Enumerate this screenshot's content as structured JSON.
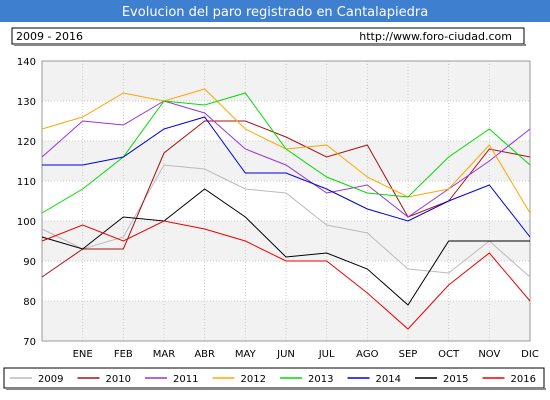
{
  "header": {
    "title": "Evolucion del paro registrado en Cantalapiedra",
    "period": "2009 - 2016",
    "url": "http://www.foro-ciudad.com"
  },
  "colors": {
    "title_bar": "#3f7fcf",
    "plot_band": "#f2f2f2",
    "grid": "#cccccc"
  },
  "chart_data": {
    "type": "line",
    "title": "Evolucion del paro registrado en Cantalapiedra",
    "categories": [
      "",
      "ENE",
      "FEB",
      "MAR",
      "ABR",
      "MAY",
      "JUN",
      "JUL",
      "AGO",
      "SEP",
      "OCT",
      "NOV",
      "DIC"
    ],
    "y_ticks": [
      70,
      80,
      90,
      100,
      110,
      120,
      130,
      140
    ],
    "ylim": [
      70,
      140
    ],
    "grid": true,
    "legend_position": "bottom",
    "series": [
      {
        "name": "2009",
        "color": "#bbbbbb",
        "values": [
          98,
          93,
          96,
          114,
          113,
          108,
          107,
          99,
          97,
          88,
          87,
          95,
          86
        ]
      },
      {
        "name": "2010",
        "color": "#aa1111",
        "values": [
          86,
          93,
          93,
          117,
          125,
          125,
          121,
          116,
          119,
          101,
          105,
          118,
          116
        ]
      },
      {
        "name": "2011",
        "color": "#9933dd",
        "values": [
          116,
          125,
          124,
          130,
          127,
          118,
          114,
          107,
          109,
          101,
          108,
          115,
          123
        ]
      },
      {
        "name": "2012",
        "color": "#ffa500",
        "values": [
          123,
          126,
          132,
          130,
          133,
          123,
          118,
          119,
          111,
          106,
          108,
          119,
          102
        ]
      },
      {
        "name": "2013",
        "color": "#00dd00",
        "values": [
          102,
          108,
          116,
          130,
          129,
          132,
          118,
          111,
          107,
          106,
          116,
          123,
          114
        ]
      },
      {
        "name": "2014",
        "color": "#0000dd",
        "values": [
          114,
          114,
          116,
          123,
          126,
          112,
          112,
          108,
          103,
          100,
          105,
          109,
          96
        ]
      },
      {
        "name": "2015",
        "color": "#000000",
        "values": [
          96,
          93,
          101,
          100,
          108,
          101,
          91,
          92,
          88,
          79,
          95,
          95,
          95
        ]
      },
      {
        "name": "2016",
        "color": "#ee0000",
        "values": [
          95,
          99,
          95,
          100,
          98,
          95,
          90,
          90,
          82,
          73,
          84,
          92,
          80
        ]
      }
    ]
  }
}
